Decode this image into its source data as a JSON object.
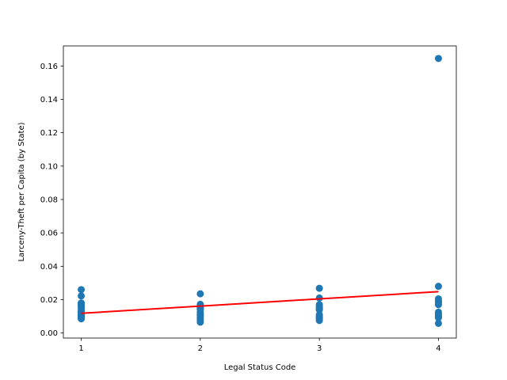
{
  "chart_data": {
    "type": "scatter",
    "title": "",
    "xlabel": "Legal Status Code",
    "ylabel": "Larceny-Theft per Capita (by State)",
    "xlim": [
      0.85,
      4.15
    ],
    "ylim": [
      -0.003,
      0.172
    ],
    "xticks": [
      1,
      2,
      3,
      4
    ],
    "xtick_labels": [
      "1",
      "2",
      "3",
      "4"
    ],
    "yticks": [
      0.0,
      0.02,
      0.04,
      0.06,
      0.08,
      0.1,
      0.12,
      0.14,
      0.16
    ],
    "ytick_labels": [
      "0.00",
      "0.02",
      "0.04",
      "0.06",
      "0.08",
      "0.10",
      "0.12",
      "0.14",
      "0.16"
    ],
    "grid": false,
    "legend": "none",
    "series": [
      {
        "kind": "scatter",
        "color": "#1f77b4",
        "x": [
          1,
          1,
          1,
          1,
          1,
          1,
          1,
          1,
          1,
          1,
          1,
          1,
          1,
          1,
          1,
          1,
          1,
          1,
          1,
          1,
          2,
          2,
          2,
          2,
          2,
          2,
          2,
          2,
          2,
          2,
          2,
          2,
          2,
          2,
          2,
          2,
          3,
          3,
          3,
          3,
          3,
          3,
          3,
          3,
          3,
          3,
          3,
          3,
          3,
          4,
          4,
          4,
          4,
          4,
          4,
          4,
          4,
          4,
          4,
          4,
          4
        ],
        "y": [
          0.026,
          0.0222,
          0.018,
          0.0172,
          0.0165,
          0.016,
          0.0148,
          0.0135,
          0.0125,
          0.012,
          0.0115,
          0.011,
          0.0105,
          0.0102,
          0.01,
          0.0097,
          0.0095,
          0.0092,
          0.009,
          0.0085,
          0.0235,
          0.0172,
          0.0165,
          0.016,
          0.0155,
          0.015,
          0.0145,
          0.014,
          0.0125,
          0.0115,
          0.011,
          0.0105,
          0.0095,
          0.0085,
          0.0075,
          0.0065,
          0.0268,
          0.021,
          0.017,
          0.016,
          0.015,
          0.0145,
          0.014,
          0.011,
          0.0102,
          0.0095,
          0.009,
          0.0082,
          0.0075,
          0.1645,
          0.028,
          0.0205,
          0.019,
          0.0182,
          0.017,
          0.0125,
          0.0115,
          0.0105,
          0.0098,
          0.0092,
          0.0058
        ]
      },
      {
        "kind": "line",
        "color": "#ff0000",
        "x": [
          1,
          4
        ],
        "y": [
          0.0118,
          0.0248
        ]
      }
    ]
  }
}
